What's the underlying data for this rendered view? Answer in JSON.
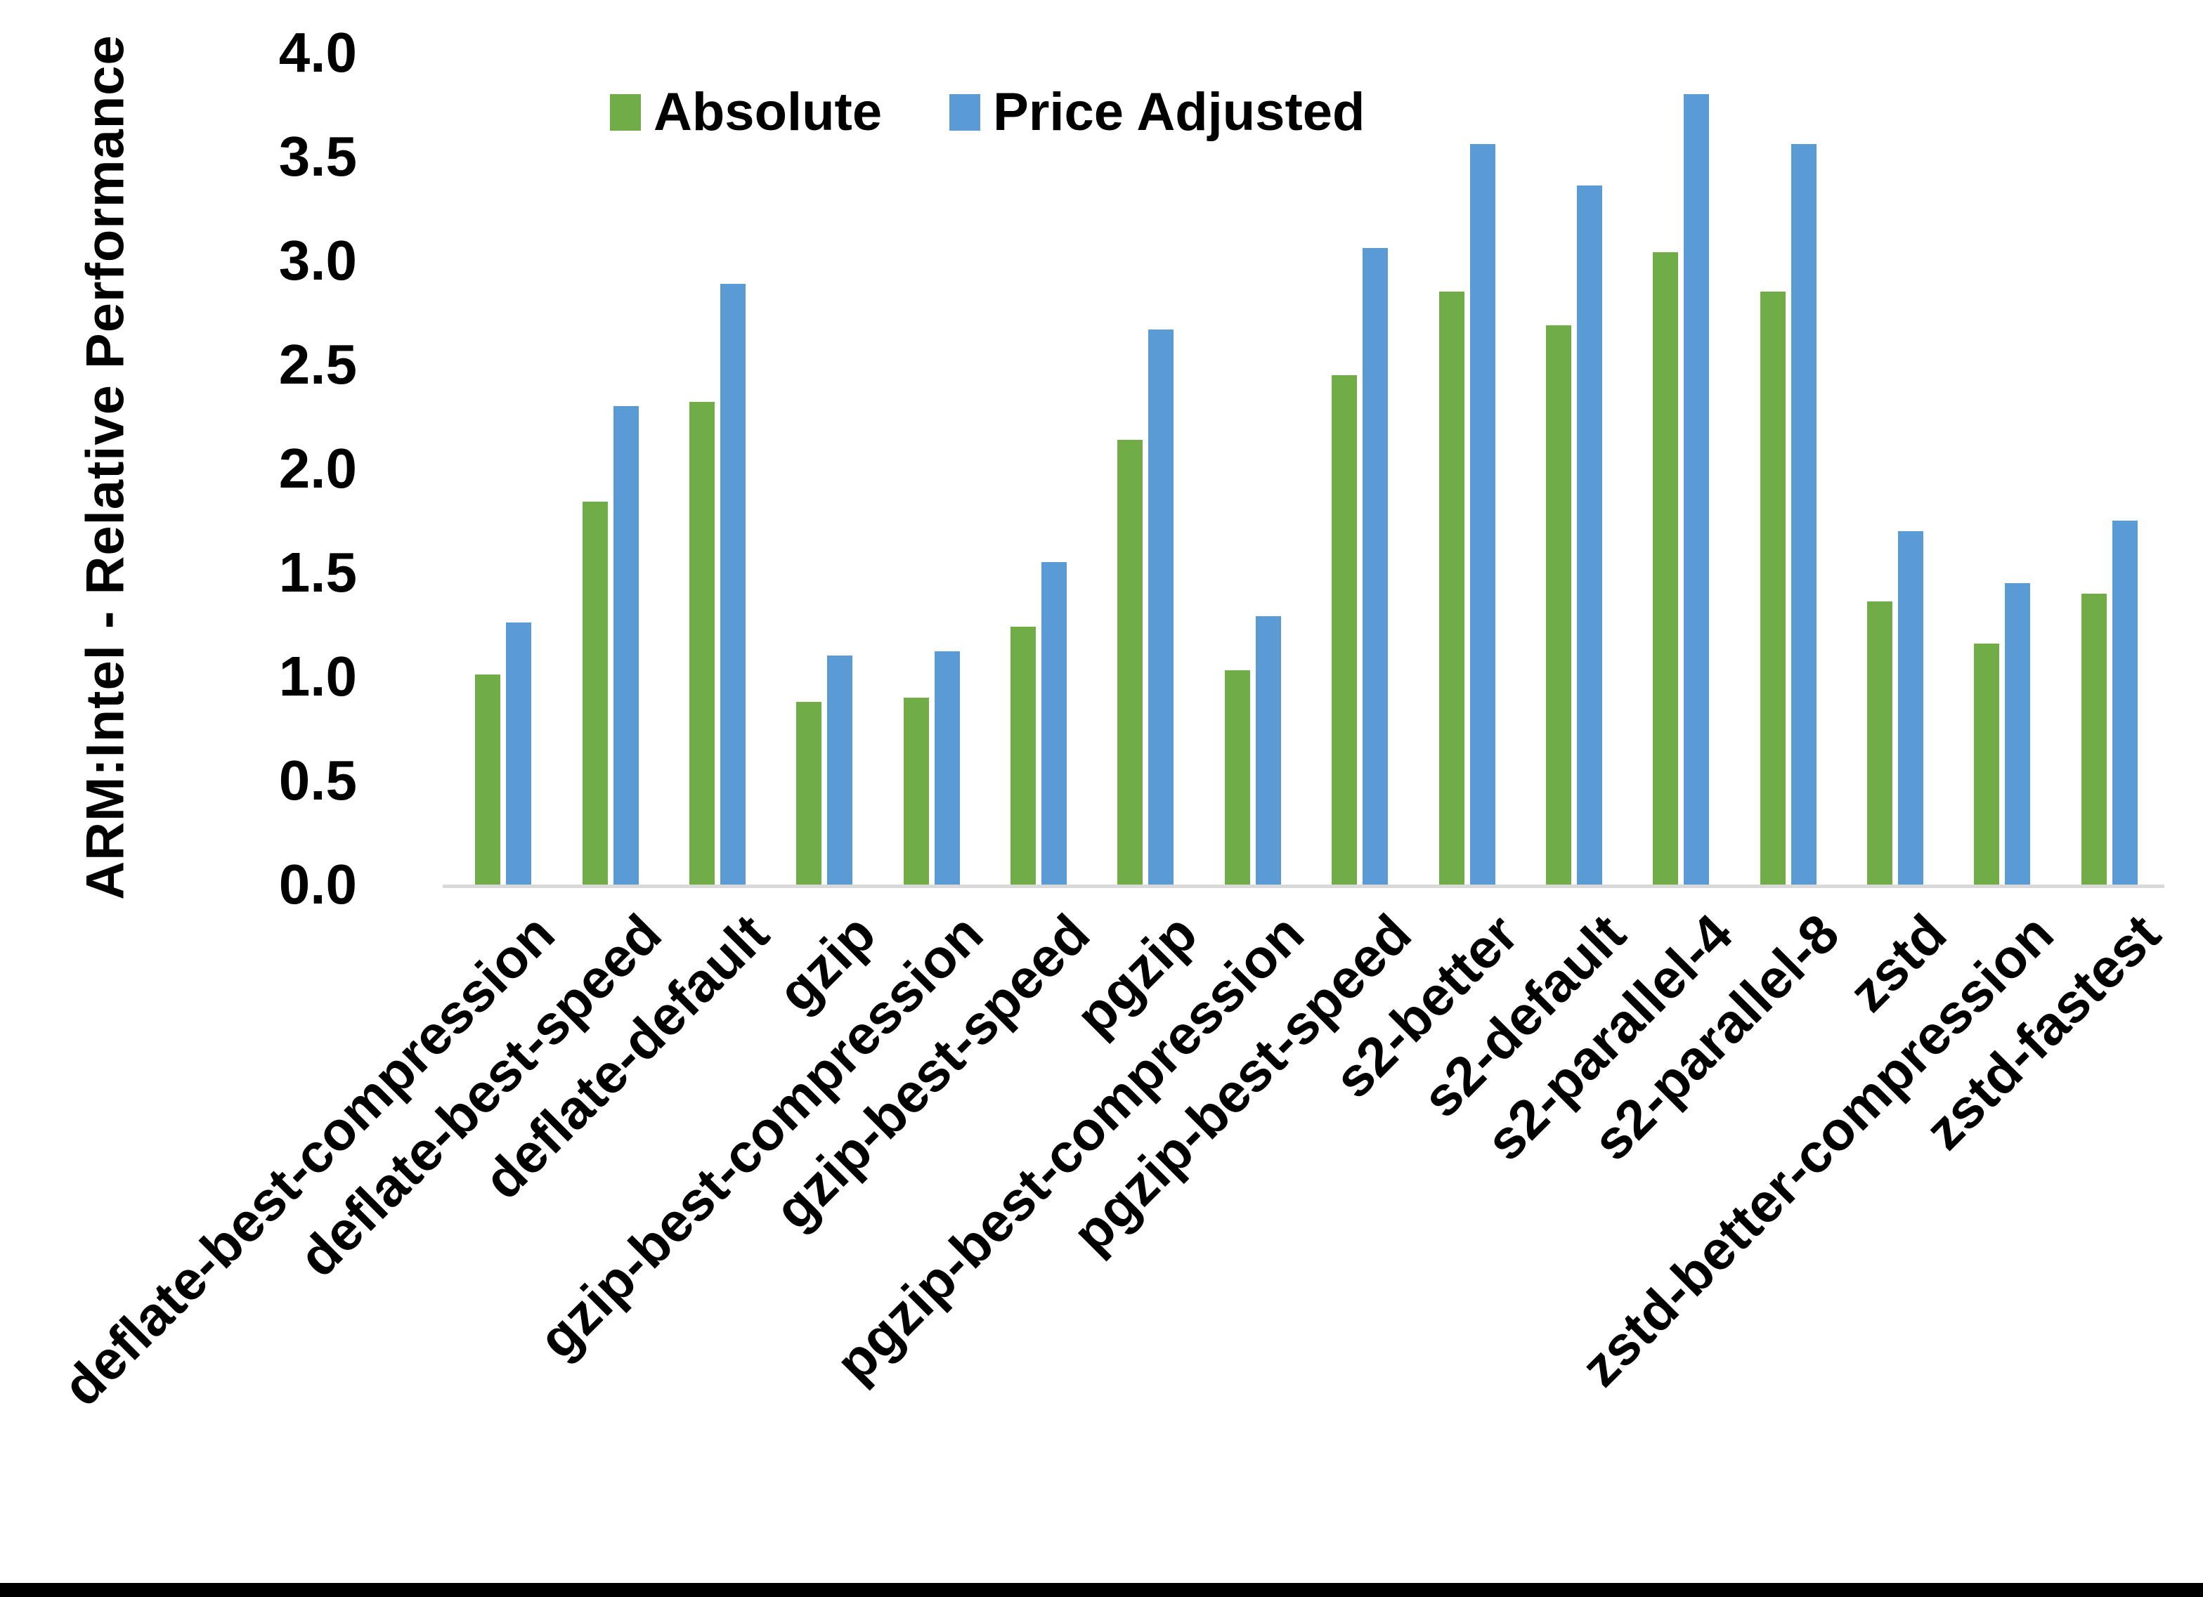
{
  "page": {
    "background": "#ffffff",
    "bottom_bar_color": "#000000"
  },
  "chart_data": {
    "type": "bar",
    "title": "",
    "xlabel": "",
    "ylabel": "ARM:Intel - Relative Performance",
    "ylim": [
      0.0,
      4.0
    ],
    "ytick_step": 0.5,
    "ytick_labels": [
      "0.0",
      "0.5",
      "1.0",
      "1.5",
      "2.0",
      "2.5",
      "3.0",
      "3.5",
      "4.0"
    ],
    "grid": false,
    "legend_position": "top",
    "axis_line_color": "#d9d9d9",
    "categories": [
      "deflate-best-compression",
      "deflate-best-speed",
      "deflate-default",
      "gzip",
      "gzip-best-compression",
      "gzip-best-speed",
      "pgzip",
      "pgzip-best-compression",
      "pgzip-best-speed",
      "s2-better",
      "s2-default",
      "s2-parallel-4",
      "s2-parallel-8",
      "zstd",
      "zstd-better-compression",
      "zstd-fastest"
    ],
    "series": [
      {
        "name": "Absolute",
        "color": "#70AD47",
        "values": [
          1.01,
          1.84,
          2.32,
          0.88,
          0.9,
          1.24,
          2.14,
          1.03,
          2.45,
          2.85,
          2.69,
          3.04,
          2.85,
          1.36,
          1.16,
          1.4
        ]
      },
      {
        "name": "Price Adjusted",
        "color": "#5B9BD5",
        "values": [
          1.26,
          2.3,
          2.89,
          1.1,
          1.12,
          1.55,
          2.67,
          1.29,
          3.06,
          3.56,
          3.36,
          3.8,
          3.56,
          1.7,
          1.45,
          1.75
        ]
      }
    ]
  }
}
